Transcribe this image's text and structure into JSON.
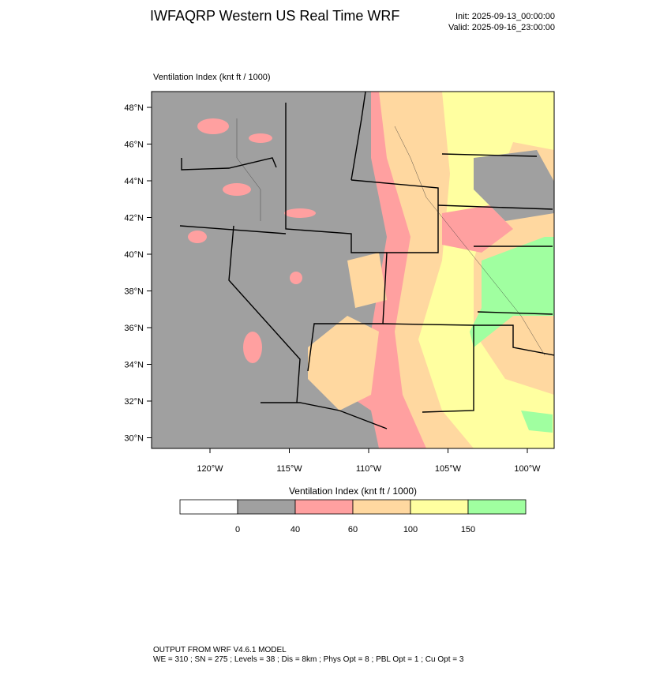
{
  "header": {
    "title": "IWFAQRP Western US Real Time WRF",
    "init": "Init: 2025-09-13_00:00:00",
    "valid": "Valid: 2025-09-16_23:00:00"
  },
  "map": {
    "field_label": "Ventilation Index   (knt ft / 1000)",
    "lat_labels": [
      "48°N",
      "46°N",
      "44°N",
      "42°N",
      "40°N",
      "38°N",
      "36°N",
      "34°N",
      "32°N",
      "30°N"
    ],
    "lon_labels": [
      "120°W",
      "115°W",
      "110°W",
      "105°W",
      "100°W"
    ]
  },
  "colorbar": {
    "title": "Ventilation Index   (knt ft / 1000)",
    "colors": [
      "#ffffff",
      "#a0a0a0",
      "#ffa0a0",
      "#ffd8a0",
      "#ffffa0",
      "#a0ffa0"
    ],
    "tick_labels": [
      "0",
      "40",
      "60",
      "100",
      "150"
    ]
  },
  "footer": {
    "line1": "OUTPUT FROM WRF V4.6.1 MODEL",
    "line2": "WE = 310 ; SN = 275 ; Levels = 38 ; Dis = 8km ; Phys Opt = 8 ; PBL Opt = 1 ; Cu Opt = 3"
  }
}
